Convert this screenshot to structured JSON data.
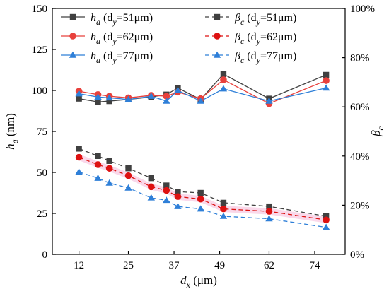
{
  "chart_data": {
    "type": "line",
    "xlabel": "d",
    "xlabel_sub": "x",
    "xlabel_unit": " (μm)",
    "ylabel_left": "h",
    "ylabel_left_sub": "a",
    "ylabel_left_unit": " (nm)",
    "ylabel_right": "β",
    "ylabel_right_sub": "c",
    "x": [
      12,
      17,
      20,
      25,
      31,
      35,
      38,
      44,
      50,
      62,
      77
    ],
    "xticks": [
      "12",
      "25",
      "37",
      "49",
      "62",
      "74"
    ],
    "xtick_values": [
      12,
      25,
      37,
      49,
      62,
      74
    ],
    "xlim": [
      5,
      82
    ],
    "ylim_left": [
      0,
      150
    ],
    "yticks_left": [
      "0",
      "25",
      "50",
      "75",
      "100",
      "125",
      "150"
    ],
    "ylim_right": [
      0,
      100
    ],
    "yticks_right": [
      "0%",
      "20%",
      "40%",
      "60%",
      "80%",
      "100%"
    ],
    "legend_position": "top",
    "series": [
      {
        "name_main": "h",
        "name_sub": "a",
        "name_mid": " (d",
        "name_sub2": "y",
        "name_tail": "=51μm)",
        "axis": "left",
        "style": "solid",
        "marker": "square",
        "color": "#404040",
        "values": [
          95,
          93,
          93.5,
          94.5,
          96,
          97.5,
          101.5,
          94.5,
          110,
          95,
          109.5
        ]
      },
      {
        "name_main": "h",
        "name_sub": "a",
        "name_mid": " (d",
        "name_sub2": "y",
        "name_tail": "=62μm)",
        "axis": "left",
        "style": "solid",
        "marker": "circle",
        "color": "#e8413c",
        "values": [
          99.5,
          97.5,
          96.5,
          95.5,
          97,
          96.5,
          99,
          95,
          106.5,
          92,
          106
        ]
      },
      {
        "name_main": "h",
        "name_sub": "a",
        "name_mid": " (d",
        "name_sub2": "y",
        "name_tail": "=77μm)",
        "axis": "left",
        "style": "solid",
        "marker": "triangle",
        "color": "#2e7fd8",
        "values": [
          98,
          96,
          95.5,
          94.5,
          96.5,
          93.5,
          100,
          93.5,
          101,
          93.5,
          101.5
        ]
      },
      {
        "name_main": "β",
        "name_sub": "c",
        "name_mid": " (d",
        "name_sub2": "y",
        "name_tail": "=51μm)",
        "axis": "right",
        "style": "dashed",
        "marker": "square",
        "color": "#404040",
        "values": [
          43,
          40,
          38,
          35,
          31,
          28,
          25.5,
          25,
          21,
          19.5,
          15.5
        ]
      },
      {
        "name_main": "β",
        "name_sub": "c",
        "name_mid": " (d",
        "name_sub2": "y",
        "name_tail": "=62μm)",
        "axis": "right",
        "style": "dashed",
        "marker": "circle",
        "color": "#dd1111",
        "values": [
          39.5,
          36.5,
          35,
          32,
          27.5,
          26,
          23.5,
          22.5,
          18.5,
          17.5,
          14
        ]
      },
      {
        "name_main": "β",
        "name_sub": "c",
        "name_mid": " (d",
        "name_sub2": "y",
        "name_tail": "=77μm)",
        "axis": "right",
        "style": "dashed",
        "marker": "triangle",
        "color": "#2e7fd8",
        "values": [
          33.5,
          31,
          29,
          27,
          23,
          22,
          19.5,
          18.5,
          15.5,
          14.5,
          11
        ]
      }
    ]
  }
}
